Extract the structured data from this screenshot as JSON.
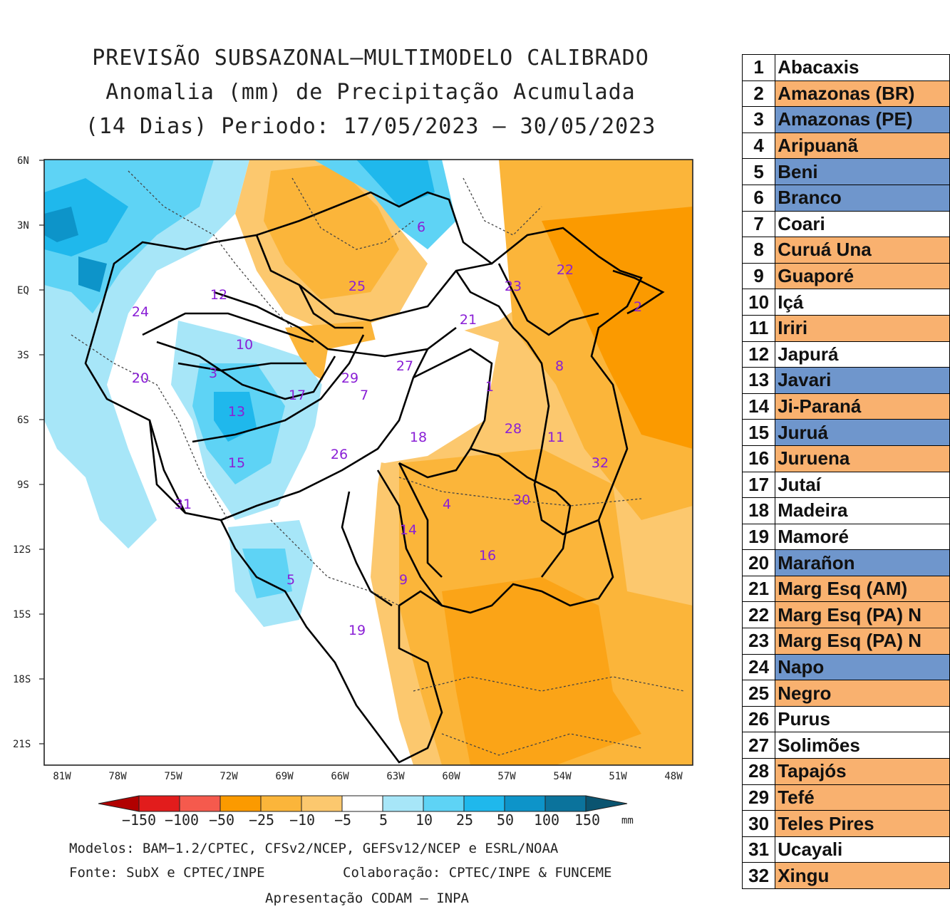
{
  "titles": {
    "line1": "PREVISÃO SUBSAZONAL—MULTIMODELO CALIBRADO",
    "line2": "Anomalia (mm) de Precipitação Acumulada",
    "line3": "(14 Dias) Periodo: 17/05/2023 — 30/05/2023"
  },
  "map": {
    "lat_labels": [
      "6N",
      "3N",
      "EQ",
      "3S",
      "6S",
      "9S",
      "12S",
      "15S",
      "18S",
      "21S"
    ],
    "lon_labels": [
      "81W",
      "78W",
      "75W",
      "72W",
      "69W",
      "66W",
      "63W",
      "60W",
      "57W",
      "54W",
      "51W",
      "48W"
    ],
    "basin_markers": [
      "1",
      "2",
      "3",
      "4",
      "5",
      "6",
      "7",
      "8",
      "9",
      "10",
      "11",
      "12",
      "13",
      "14",
      "15",
      "16",
      "17",
      "18",
      "19",
      "20",
      "21",
      "22",
      "23",
      "24",
      "25",
      "26",
      "27",
      "28",
      "29",
      "30",
      "31",
      "32"
    ]
  },
  "colorbar": {
    "labels": [
      "−150",
      "−100",
      "−50",
      "−25",
      "−10",
      "−5",
      "5",
      "10",
      "25",
      "50",
      "100",
      "150"
    ],
    "unit": "mm",
    "colors": [
      "#b10000",
      "#e21c1c",
      "#f55a4d",
      "#fb9a00",
      "#fbb53a",
      "#fcc86e",
      "#fee3b0",
      "#ffffff",
      "#a7e6f8",
      "#5ed3f5",
      "#1fb8ec",
      "#0d94c9",
      "#0b739c",
      "#0a5470"
    ]
  },
  "footer": {
    "models": "Modelos: BAM−1.2/CPTEC, CFSv2/NCEP, GEFSv12/NCEP e ESRL/NOAA",
    "source": "Fonte: SubX e CPTEC/INPE",
    "collab": "Colaboração: CPTEC/INPE & FUNCEME",
    "presentation": "Apresentação CODAM — INPA"
  },
  "table": {
    "rows": [
      {
        "n": "1",
        "name": "Abacaxis",
        "color": "white"
      },
      {
        "n": "2",
        "name": "Amazonas (BR)",
        "color": "orange"
      },
      {
        "n": "3",
        "name": "Amazonas (PE)",
        "color": "blue"
      },
      {
        "n": "4",
        "name": "Aripuanã",
        "color": "orange"
      },
      {
        "n": "5",
        "name": "Beni",
        "color": "blue"
      },
      {
        "n": "6",
        "name": "Branco",
        "color": "blue"
      },
      {
        "n": "7",
        "name": "Coari",
        "color": "white"
      },
      {
        "n": "8",
        "name": "Curuá Una",
        "color": "orange"
      },
      {
        "n": "9",
        "name": "Guaporé",
        "color": "orange"
      },
      {
        "n": "10",
        "name": "Içá",
        "color": "white"
      },
      {
        "n": "11",
        "name": "Iriri",
        "color": "orange"
      },
      {
        "n": "12",
        "name": "Japurá",
        "color": "white"
      },
      {
        "n": "13",
        "name": "Javari",
        "color": "blue"
      },
      {
        "n": "14",
        "name": "Ji-Paraná",
        "color": "orange"
      },
      {
        "n": "15",
        "name": "Juruá",
        "color": "blue"
      },
      {
        "n": "16",
        "name": "Juruena",
        "color": "orange"
      },
      {
        "n": "17",
        "name": "Jutaí",
        "color": "white"
      },
      {
        "n": "18",
        "name": "Madeira",
        "color": "white"
      },
      {
        "n": "19",
        "name": "Mamoré",
        "color": "white"
      },
      {
        "n": "20",
        "name": "Marañon",
        "color": "blue"
      },
      {
        "n": "21",
        "name": "Marg Esq (AM)",
        "color": "orange"
      },
      {
        "n": "22",
        "name": "Marg Esq (PA) N",
        "color": "orange"
      },
      {
        "n": "23",
        "name": "Marg Esq (PA) N",
        "color": "orange"
      },
      {
        "n": "24",
        "name": "Napo",
        "color": "blue"
      },
      {
        "n": "25",
        "name": "Negro",
        "color": "orange"
      },
      {
        "n": "26",
        "name": "Purus",
        "color": "white"
      },
      {
        "n": "27",
        "name": "Solimões",
        "color": "white"
      },
      {
        "n": "28",
        "name": "Tapajós",
        "color": "orange"
      },
      {
        "n": "29",
        "name": "Tefé",
        "color": "orange"
      },
      {
        "n": "30",
        "name": "Teles Pires",
        "color": "orange"
      },
      {
        "n": "31",
        "name": "Ucayali",
        "color": "white"
      },
      {
        "n": "32",
        "name": "Xingu",
        "color": "orange"
      }
    ]
  }
}
